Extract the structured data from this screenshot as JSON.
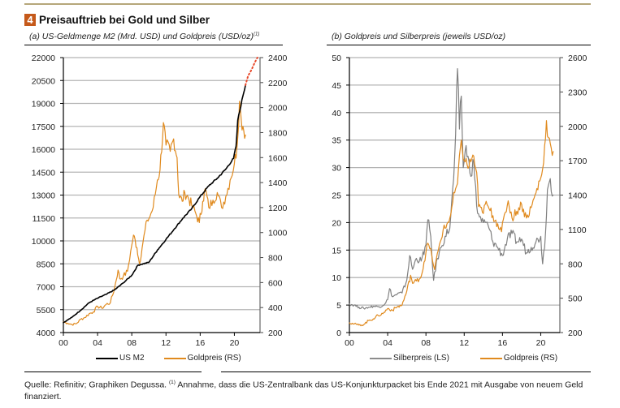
{
  "header": {
    "figure_number": "4",
    "title": "Preisauftrieb bei Gold und Silber",
    "subtitle_a": "(a) US-Geldmenge M2 (Mrd. USD) und Goldpreis (USD/oz)",
    "subtitle_a_note": "(1)",
    "subtitle_b": "(b) Goldpreis und Silberpreis (jeweils USD/oz)"
  },
  "colors": {
    "badge": "#c5591a",
    "gold": "#e08a1e",
    "m2": "#000000",
    "silver": "#808080",
    "projection": "#e8482a",
    "grid": "#b4b4b4",
    "top_rule": "#b5a77a"
  },
  "footer": {
    "source_text": "Quelle: Refinitiv; Graphiken Degussa.",
    "note_marker": "(1)",
    "note_text": "Annahme, dass die US-Zentralbank das US-Konjunkturpacket bis Ende 2021 mit Ausgabe von neuem Geld finanziert."
  },
  "chart_data": [
    {
      "type": "line",
      "title": "(a) US-Geldmenge M2 (Mrd. USD) und Goldpreis (USD/oz)",
      "xlabel": "",
      "ylabel": "US M2 (Mrd. USD)",
      "y2label": "Goldpreis (USD/oz)",
      "x_ticks": [
        "00",
        "04",
        "08",
        "12",
        "16",
        "20"
      ],
      "x_range": [
        2000,
        2023
      ],
      "ylim": [
        4000,
        22000
      ],
      "y_ticks": [
        4000,
        5500,
        7000,
        8500,
        10000,
        11500,
        13000,
        14500,
        16000,
        17500,
        19000,
        20500,
        22000
      ],
      "y2lim": [
        200,
        2400
      ],
      "y2_ticks": [
        200,
        400,
        600,
        800,
        1000,
        1200,
        1400,
        1600,
        1800,
        2000,
        2200,
        2400
      ],
      "grid": true,
      "legend_position": "bottom",
      "legend": [
        "US M2",
        "Goldpreis (RS)"
      ],
      "series": [
        {
          "name": "US M2",
          "axis": "left",
          "style": "solid",
          "x": [
            2000,
            2001,
            2002,
            2003,
            2004,
            2005,
            2006,
            2007,
            2008,
            2008.7,
            2009,
            2010,
            2011,
            2012,
            2013,
            2014,
            2015,
            2016,
            2017,
            2018,
            2019,
            2019.9,
            2020.2,
            2020.4,
            2021,
            2021.3
          ],
          "values": [
            4650,
            5000,
            5450,
            5950,
            6250,
            6500,
            6800,
            7250,
            7750,
            8400,
            8450,
            8600,
            9400,
            10100,
            10800,
            11500,
            12100,
            12900,
            13600,
            14100,
            14700,
            15400,
            16200,
            17900,
            19500,
            20200
          ]
        },
        {
          "name": "US M2 Projektion",
          "axis": "left",
          "style": "dotted",
          "x": [
            2021.3,
            2021.6,
            2022,
            2022.4,
            2022.7
          ],
          "values": [
            20200,
            20800,
            21200,
            21700,
            22000
          ]
        },
        {
          "name": "Goldpreis (RS)",
          "axis": "right",
          "style": "solid",
          "x": [
            2000,
            2000.5,
            2001,
            2001.5,
            2002,
            2002.5,
            2003,
            2003.5,
            2004,
            2004.5,
            2005,
            2005.5,
            2006,
            2006.4,
            2006.6,
            2007,
            2007.5,
            2008,
            2008.2,
            2008.6,
            2008.9,
            2009.3,
            2009.8,
            2010,
            2010.5,
            2011,
            2011.3,
            2011.7,
            2012,
            2012.5,
            2012.9,
            2013.3,
            2013.5,
            2013.9,
            2014.2,
            2014.6,
            2015,
            2015.5,
            2015.9,
            2016.3,
            2016.6,
            2017,
            2017.5,
            2018,
            2018.5,
            2019,
            2019.5,
            2020,
            2020.3,
            2020.6,
            2020.8,
            2021,
            2021.3
          ],
          "values": [
            285,
            275,
            265,
            270,
            305,
            320,
            350,
            365,
            410,
            395,
            425,
            440,
            560,
            700,
            630,
            650,
            690,
            900,
            980,
            880,
            750,
            920,
            1100,
            1110,
            1200,
            1420,
            1500,
            1880,
            1700,
            1650,
            1750,
            1600,
            1300,
            1250,
            1320,
            1280,
            1220,
            1150,
            1080,
            1250,
            1350,
            1200,
            1260,
            1320,
            1200,
            1290,
            1420,
            1550,
            1680,
            2050,
            1900,
            1850,
            1780
          ]
        }
      ]
    },
    {
      "type": "line",
      "title": "(b) Goldpreis und Silberpreis (jeweils USD/oz)",
      "xlabel": "",
      "ylabel": "Silberpreis (USD/oz)",
      "y2label": "Goldpreis (USD/oz)",
      "x_ticks": [
        "00",
        "04",
        "08",
        "12",
        "16",
        "20"
      ],
      "x_range": [
        2000,
        2022
      ],
      "ylim": [
        0,
        50
      ],
      "y_ticks": [
        0,
        5,
        10,
        15,
        20,
        25,
        30,
        35,
        40,
        45,
        50
      ],
      "y2lim": [
        200,
        2600
      ],
      "y2_ticks": [
        200,
        500,
        800,
        1100,
        1400,
        1700,
        2000,
        2300,
        2600
      ],
      "grid": true,
      "legend_position": "bottom",
      "legend": [
        "Silberpreis (LS)",
        "Goldpreis (RS)"
      ],
      "series": [
        {
          "name": "Silberpreis (LS)",
          "axis": "left",
          "x": [
            2000,
            2000.5,
            2001,
            2001.5,
            2002,
            2002.5,
            2003,
            2003.5,
            2004,
            2004.2,
            2004.5,
            2005,
            2005.5,
            2006,
            2006.3,
            2006.6,
            2007,
            2007.5,
            2008,
            2008.2,
            2008.5,
            2008.8,
            2009.2,
            2009.6,
            2010,
            2010.5,
            2010.9,
            2011.1,
            2011.3,
            2011.5,
            2011.7,
            2011.9,
            2012.2,
            2012.6,
            2013,
            2013.3,
            2013.6,
            2014,
            2014.5,
            2015,
            2015.5,
            2016,
            2016.5,
            2017,
            2017.5,
            2018,
            2018.5,
            2019,
            2019.5,
            2020,
            2020.2,
            2020.5,
            2020.7,
            2021,
            2021.3
          ],
          "values": [
            5.2,
            5.0,
            4.6,
            4.4,
            4.6,
            4.8,
            4.7,
            4.9,
            6.0,
            8.0,
            6.5,
            7.0,
            7.2,
            9.5,
            14.0,
            11.5,
            13.5,
            13.0,
            16.0,
            20.5,
            17.5,
            9.5,
            13.5,
            15.5,
            17.5,
            19.0,
            28.0,
            36.0,
            48.0,
            37.0,
            43.0,
            30.0,
            34.0,
            29.0,
            31.0,
            23.0,
            21.0,
            20.0,
            19.5,
            16.5,
            15.5,
            14.0,
            17.0,
            18.0,
            16.5,
            17.0,
            14.5,
            15.5,
            16.5,
            17.5,
            12.5,
            18.0,
            26.0,
            28.0,
            25.0
          ]
        },
        {
          "name": "Goldpreis (RS)",
          "axis": "right",
          "x": [
            2000,
            2000.5,
            2001,
            2001.5,
            2002,
            2002.5,
            2003,
            2003.5,
            2004,
            2004.5,
            2005,
            2005.5,
            2006,
            2006.4,
            2006.6,
            2007,
            2007.5,
            2008,
            2008.2,
            2008.6,
            2008.9,
            2009.3,
            2009.8,
            2010,
            2010.5,
            2011,
            2011.3,
            2011.7,
            2012,
            2012.5,
            2012.9,
            2013.3,
            2013.5,
            2013.9,
            2014.2,
            2014.6,
            2015,
            2015.5,
            2015.9,
            2016.3,
            2016.6,
            2017,
            2017.5,
            2018,
            2018.5,
            2019,
            2019.5,
            2020,
            2020.3,
            2020.6,
            2020.8,
            2021,
            2021.3
          ],
          "values": [
            285,
            275,
            265,
            270,
            305,
            320,
            350,
            365,
            410,
            395,
            425,
            440,
            560,
            700,
            630,
            650,
            690,
            900,
            980,
            880,
            750,
            920,
            1100,
            1110,
            1200,
            1420,
            1500,
            1880,
            1700,
            1650,
            1750,
            1600,
            1300,
            1250,
            1320,
            1280,
            1220,
            1150,
            1080,
            1250,
            1350,
            1200,
            1260,
            1320,
            1200,
            1290,
            1420,
            1550,
            1680,
            2050,
            1900,
            1850,
            1780
          ]
        }
      ]
    }
  ]
}
